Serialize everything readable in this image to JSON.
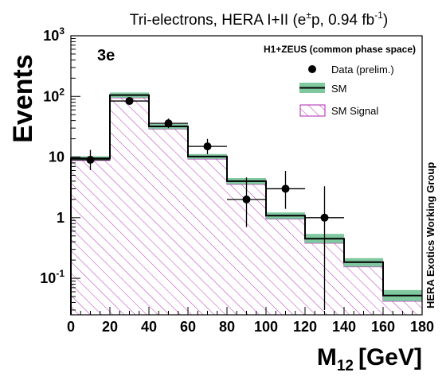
{
  "chart_data": {
    "type": "histogram",
    "title_main": "Tri-electrons, HERA I+II (e",
    "title_sup_pm": "±",
    "title_mid": "p, 0.94 fb",
    "title_sup": "-1",
    "title_end": ")",
    "channel_label": "3e",
    "phase_space_label": "H1+ZEUS (common phase space)",
    "side_label": "HERA Exotics Working Group",
    "ylabel": "Events",
    "xlabel_main": "M",
    "xlabel_sub": "12",
    "xlabel_unit": "[GeV]",
    "y_log_scale": true,
    "ylim": [
      0.025,
      1000
    ],
    "xlim": [
      0,
      180
    ],
    "x_ticks": [
      "0",
      "20",
      "40",
      "60",
      "80",
      "100",
      "120",
      "140",
      "160",
      "180"
    ],
    "y_tick_labels": [
      {
        "value": 1000,
        "base": "10",
        "exp": "3"
      },
      {
        "value": 100,
        "base": "10",
        "exp": "2"
      },
      {
        "value": 10,
        "base": "10",
        "exp": ""
      },
      {
        "value": 1,
        "base": "1",
        "exp": ""
      },
      {
        "value": 0.1,
        "base": "10",
        "exp": "-1"
      }
    ],
    "bin_edges": [
      0,
      20,
      40,
      60,
      80,
      100,
      120,
      140,
      160,
      180
    ],
    "series": [
      {
        "name": "SM",
        "kind": "step_with_uncertainty",
        "values": [
          9.5,
          105,
          32,
          10.2,
          4.0,
          1.08,
          0.45,
          0.185,
          0.052
        ],
        "band_low": [
          8.8,
          95,
          29,
          9.3,
          3.55,
          0.95,
          0.38,
          0.155,
          0.042
        ],
        "band_high": [
          10.3,
          116,
          35,
          11.2,
          4.5,
          1.22,
          0.54,
          0.215,
          0.064
        ],
        "color": "#80c8a0"
      },
      {
        "name": "SM Signal",
        "kind": "hatched_histogram",
        "values": [
          8.8,
          95,
          29,
          9.3,
          3.55,
          0.95,
          0.38,
          0.155,
          0.042
        ],
        "color": "#b020b0"
      }
    ],
    "data_points": {
      "name": "Data (prelim.)",
      "x": [
        10,
        30,
        50,
        70,
        90,
        110,
        130
      ],
      "y": [
        9,
        84,
        36,
        15,
        2,
        3,
        1
      ],
      "y_err_low": [
        2.9,
        9.2,
        6.0,
        3.85,
        1.3,
        1.6,
        0.97
      ],
      "y_err_high": [
        4.1,
        10.2,
        7.1,
        4.9,
        2.6,
        2.9,
        2.3
      ],
      "x_err": 10
    },
    "legend": {
      "placement": "top-right",
      "entries": [
        "Data (prelim.)",
        "SM",
        "SM Signal"
      ]
    },
    "colors": {
      "band": "#80c8a0",
      "hatch": "#b020b0",
      "line": "#000000"
    }
  }
}
